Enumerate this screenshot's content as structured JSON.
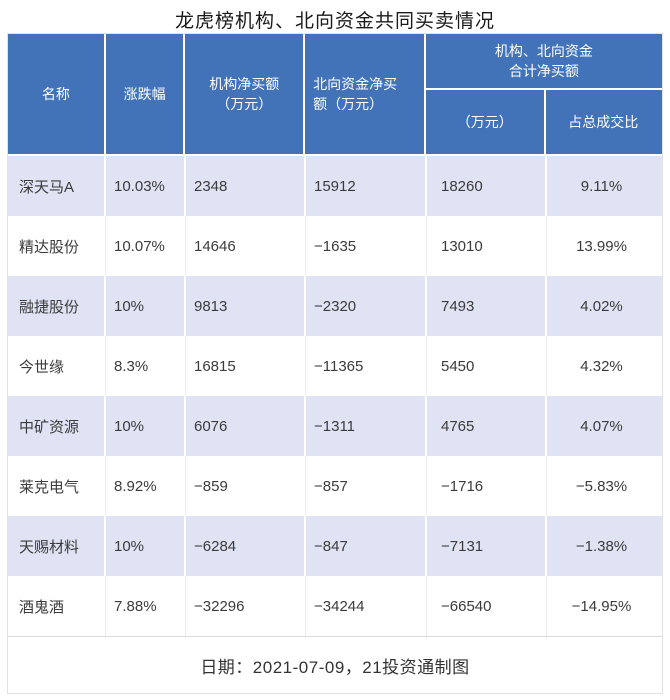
{
  "title": "龙虎榜机构、北向资金共同买卖情况",
  "footer": "日期：2021-07-09，21投资通制图",
  "colors": {
    "header_bg": "#4273B8",
    "header_text": "#FFFFFF",
    "row_alt_bg": "#DFE3F3",
    "row_bg": "#FFFFFF",
    "text_dark": "#3B3B3B",
    "title_color": "#1A1A1A"
  },
  "table": {
    "headers": {
      "name": "名称",
      "change": "涨跌幅",
      "inst_net": {
        "line1": "机构净买额",
        "line2": "（万元）"
      },
      "north_net": {
        "line1": "北向资金净买",
        "line2": "额（万元）"
      },
      "combined": {
        "line1": "机构、北向资金",
        "line2": "合计净买额",
        "sub": [
          "（万元）",
          "占总成交比"
        ]
      }
    },
    "rows": [
      {
        "name": "深天马A",
        "change": "10.03%",
        "inst_net": "2348",
        "north_net": "15912",
        "total_net": "18260",
        "pct": "9.11%"
      },
      {
        "name": "精达股份",
        "change": "10.07%",
        "inst_net": "14646",
        "north_net": "−1635",
        "total_net": "13010",
        "pct": "13.99%"
      },
      {
        "name": "融捷股份",
        "change": "10%",
        "inst_net": "9813",
        "north_net": "−2320",
        "total_net": "7493",
        "pct": "4.02%"
      },
      {
        "name": "今世缘",
        "change": "8.3%",
        "inst_net": "16815",
        "north_net": "−11365",
        "total_net": "5450",
        "pct": "4.32%"
      },
      {
        "name": "中矿资源",
        "change": "10%",
        "inst_net": "6076",
        "north_net": "−1311",
        "total_net": "4765",
        "pct": "4.07%"
      },
      {
        "name": "莱克电气",
        "change": "8.92%",
        "inst_net": "−859",
        "north_net": "−857",
        "total_net": "−1716",
        "pct": "−5.83%"
      },
      {
        "name": "天赐材料",
        "change": "10%",
        "inst_net": "−6284",
        "north_net": "−847",
        "total_net": "−7131",
        "pct": "−1.38%"
      },
      {
        "name": "酒鬼酒",
        "change": "7.88%",
        "inst_net": "−32296",
        "north_net": "−34244",
        "total_net": "−66540",
        "pct": "−14.95%"
      }
    ]
  }
}
